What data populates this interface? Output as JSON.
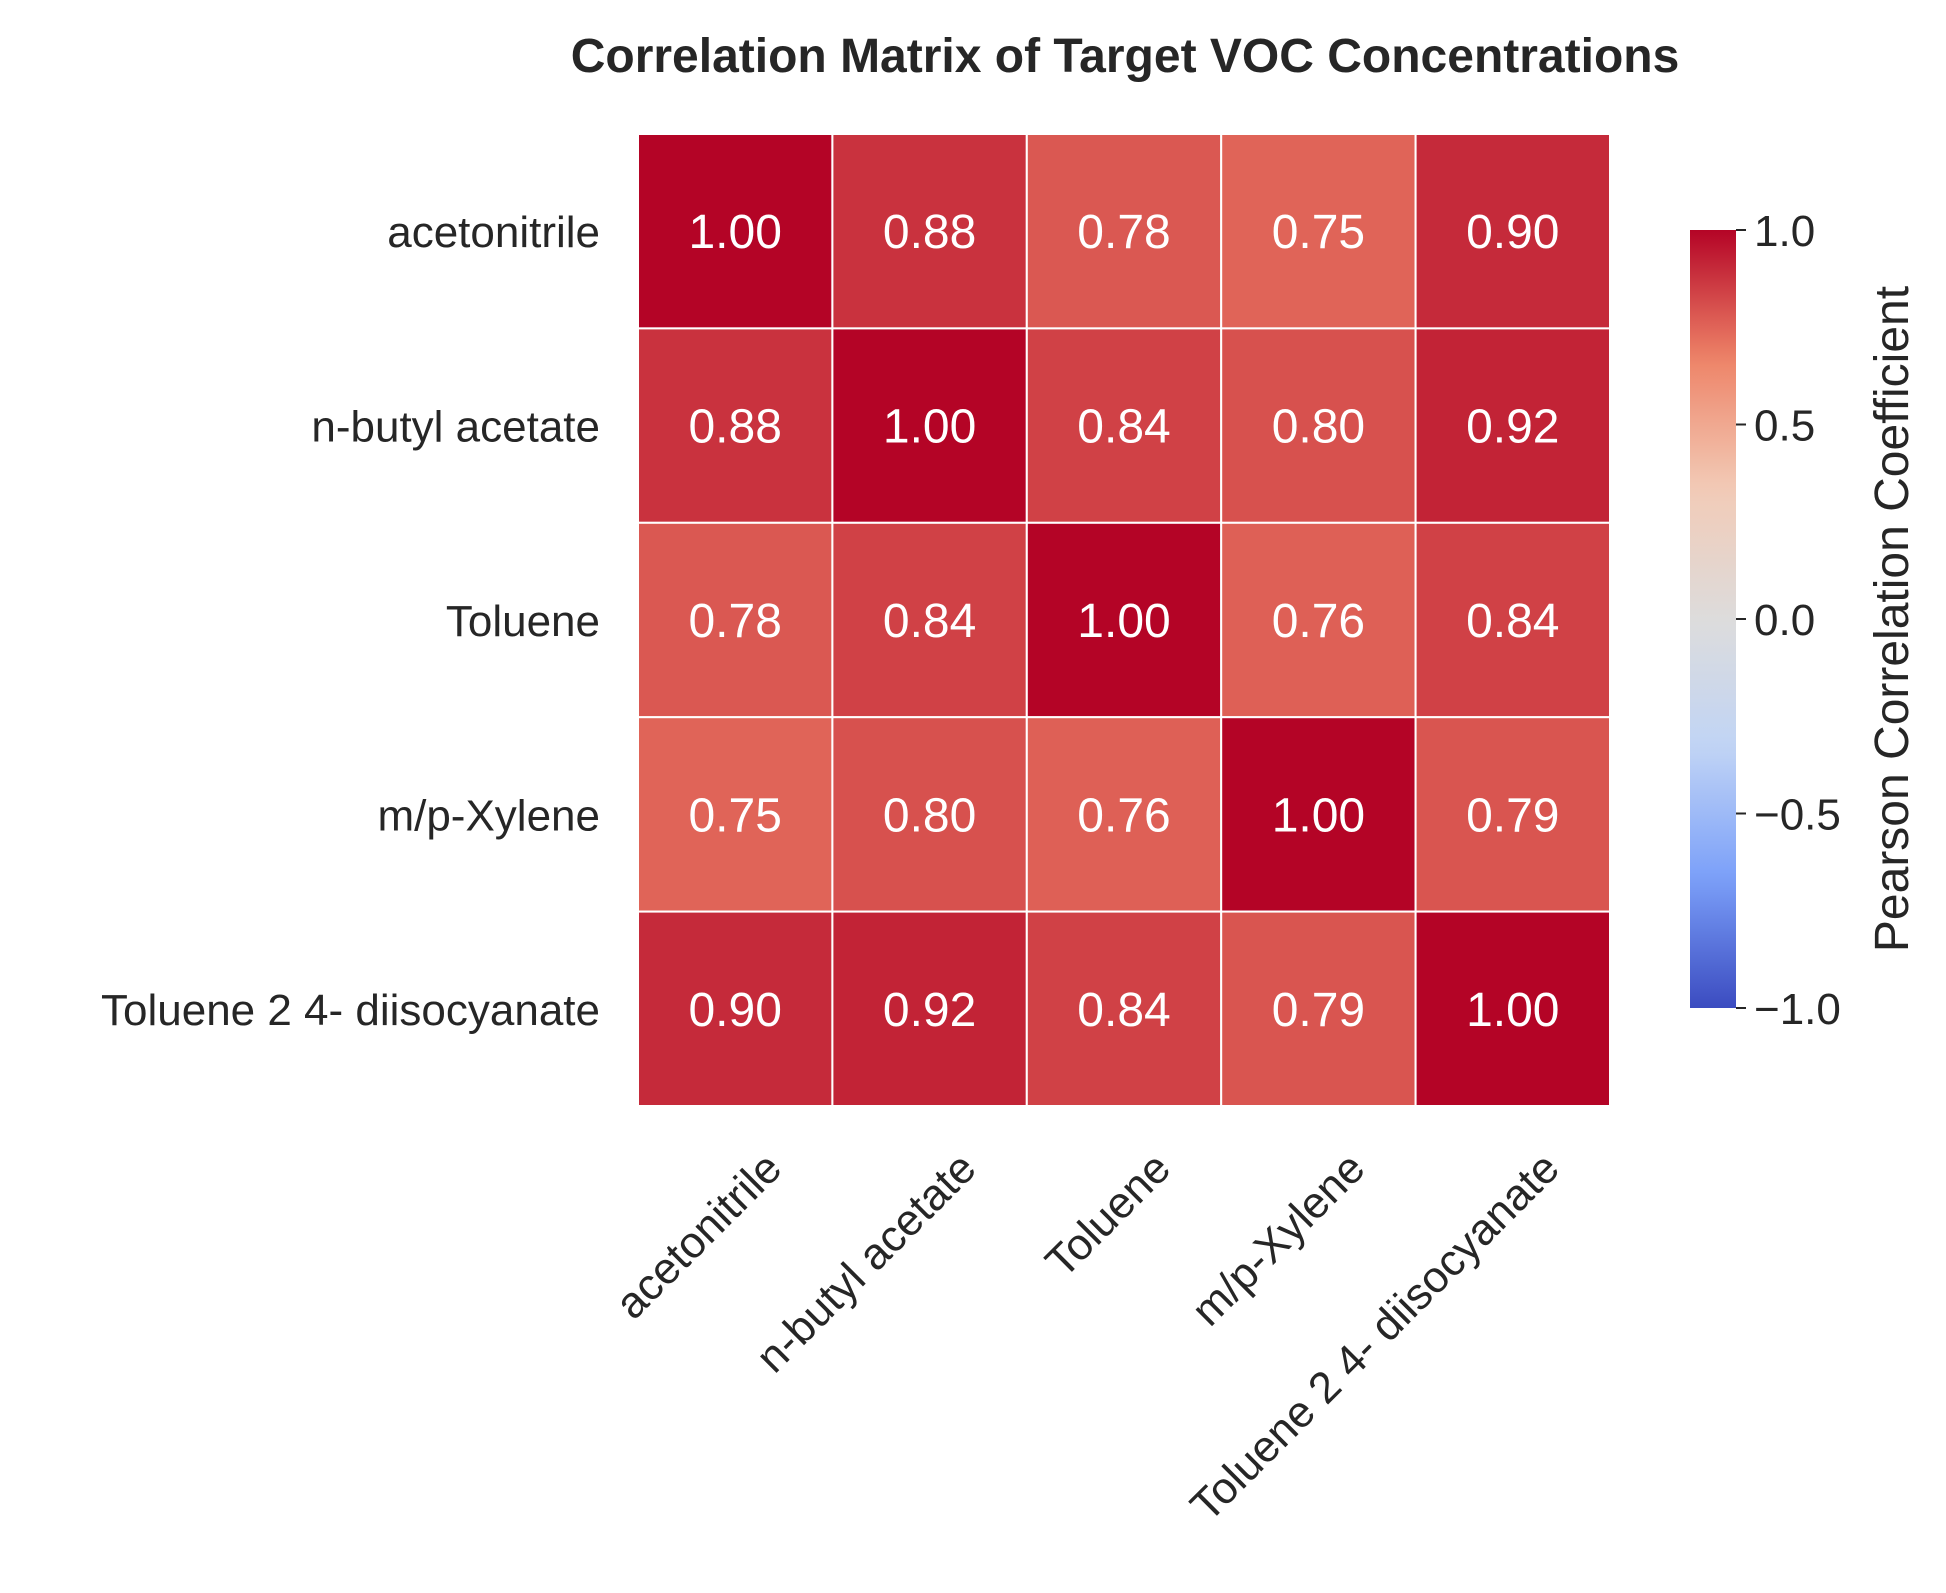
{
  "chart_data": {
    "type": "heatmap",
    "title": "Correlation Matrix of Target VOC Concentrations",
    "row_labels": [
      "acetonitrile",
      "n-butyl acetate",
      "Toluene",
      "m/p-Xylene",
      "Toluene 2 4- diisocyanate"
    ],
    "col_labels": [
      "acetonitrile",
      "n-butyl acetate",
      "Toluene",
      "m/p-Xylene",
      "Toluene 2 4- diisocyanate"
    ],
    "values": [
      [
        1.0,
        0.88,
        0.78,
        0.75,
        0.9
      ],
      [
        0.88,
        1.0,
        0.84,
        0.8,
        0.92
      ],
      [
        0.78,
        0.84,
        1.0,
        0.76,
        0.84
      ],
      [
        0.75,
        0.8,
        0.76,
        1.0,
        0.79
      ],
      [
        0.9,
        0.92,
        0.84,
        0.79,
        1.0
      ]
    ],
    "value_labels": [
      [
        "1.00",
        "0.88",
        "0.78",
        "0.75",
        "0.90"
      ],
      [
        "0.88",
        "1.00",
        "0.84",
        "0.80",
        "0.92"
      ],
      [
        "0.78",
        "0.84",
        "1.00",
        "0.76",
        "0.84"
      ],
      [
        "0.75",
        "0.80",
        "0.76",
        "1.00",
        "0.79"
      ],
      [
        "0.90",
        "0.92",
        "0.84",
        "0.79",
        "1.00"
      ]
    ],
    "colormap": "coolwarm",
    "vmin": -1.0,
    "vmax": 1.0,
    "colorbar": {
      "label": "Pearson Correlation Coefficient",
      "ticks": [
        1.0,
        0.5,
        0.0,
        -0.5,
        -1.0
      ],
      "tick_labels": [
        "1.0",
        "0.5",
        "0.0",
        "−0.5",
        "−1.0"
      ]
    }
  },
  "colors": {
    "text": "#262626",
    "cell_border": "#ffffff",
    "cmap_stops": [
      "#3b4cc0",
      "#7b9ff9",
      "#c0d4f5",
      "#dddcdc",
      "#f2cbb7",
      "#ee8468",
      "#b40426"
    ]
  }
}
